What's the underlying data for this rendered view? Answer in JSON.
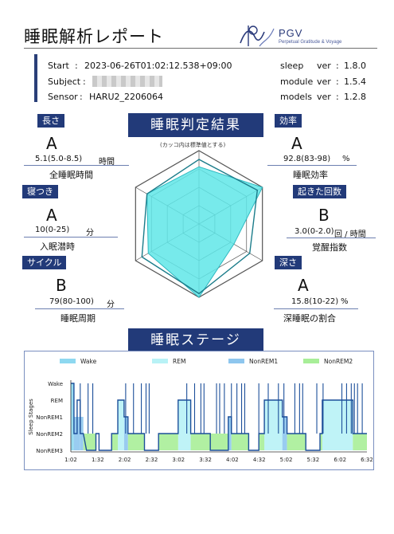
{
  "report": {
    "title": "睡眠解析レポート",
    "logo_text": "PGV",
    "logo_sub": "Perpetual Gratitude & Voyage"
  },
  "meta": {
    "start_label": "Start",
    "start_value": "2023-06-26T01:02:12.538+09:00",
    "subject_label": "Subject",
    "subject_value": "",
    "sensor_label": "Sensor",
    "sensor_value": "HARU2_2206064",
    "sleep_ver_label": "sleep",
    "sleep_ver_key": "ver",
    "sleep_ver_value": "1.8.0",
    "module_ver_label": "module",
    "module_ver_key": "ver",
    "module_ver_value": "1.5.4",
    "models_ver_label": "models",
    "models_ver_key": "ver",
    "models_ver_value": "1.2.8"
  },
  "judgment": {
    "banner": "睡眠判定結果",
    "note": "(カッコ内は標準値とする)"
  },
  "metrics": {
    "length": {
      "badge": "長さ",
      "grade": "A",
      "value": "5.1(5.0-8.5)",
      "unit": "時間",
      "label": "全睡眠時間"
    },
    "onset": {
      "badge": "寝つき",
      "grade": "A",
      "value": "10(0-25)",
      "unit": "分",
      "label": "入眠潜時"
    },
    "cycle": {
      "badge": "サイクル",
      "grade": "B",
      "value": "79(80-100)",
      "unit": "分",
      "label": "睡眠周期"
    },
    "efficiency": {
      "badge": "効率",
      "grade": "A",
      "value": "92.8(83-98)",
      "unit": "%",
      "label": "睡眠効率"
    },
    "wakeups": {
      "badge": "起きた回数",
      "grade": "B",
      "value": "3.0(0-2.0)",
      "unit": "回 / 時間",
      "label": "覚醒指数"
    },
    "depth": {
      "badge": "深さ",
      "grade": "A",
      "value": "15.8(10-22)",
      "unit": "%",
      "label": "深睡眠の割合"
    }
  },
  "radar": {
    "axes": [
      "長さ",
      "効率",
      "起きた回数",
      "深さ",
      "サイクル",
      "寝つき"
    ],
    "standard": [
      0.88,
      0.92,
      0.8,
      0.95,
      0.9,
      0.82
    ],
    "subject": [
      0.78,
      1.0,
      0.55,
      1.0,
      0.8,
      0.82
    ],
    "fill_color": "#5fe6e8",
    "line_color": "#1b7c8a",
    "grid_color": "#555555"
  },
  "stages_section": {
    "banner": "睡眠ステージ"
  },
  "chart_data": {
    "type": "area",
    "title": "",
    "xlabel": "",
    "ylabel": "Sleep Stages",
    "legend_position": "top",
    "y_categories": [
      "Wake",
      "REM",
      "NonREM1",
      "NonREM2",
      "NonREM3"
    ],
    "x_ticks": [
      "1:02",
      "1:32",
      "2:02",
      "2:32",
      "3:02",
      "3:32",
      "4:02",
      "4:32",
      "5:02",
      "5:32",
      "6:02",
      "6:32"
    ],
    "series": [
      {
        "name": "Wake",
        "color": "#8ed8f0",
        "segments": [
          [
            0,
            4
          ]
        ]
      },
      {
        "name": "REM",
        "color": "#b8f2f6",
        "segments": [
          [
            60,
            68
          ],
          [
            137,
            153
          ],
          [
            247,
            270
          ],
          [
            321,
            360
          ]
        ]
      },
      {
        "name": "NonREM1",
        "color": "#8ec6ee",
        "segments": [
          [
            4,
            12
          ],
          [
            12,
            16
          ],
          [
            68,
            73
          ],
          [
            201,
            205
          ],
          [
            270,
            276
          ]
        ]
      },
      {
        "name": "NonREM2",
        "color": "#a8ee98",
        "segments": [
          [
            16,
            32
          ],
          [
            52,
            60
          ],
          [
            73,
            94
          ],
          [
            112,
            137
          ],
          [
            153,
            201
          ],
          [
            205,
            227
          ],
          [
            240,
            247
          ],
          [
            276,
            300
          ],
          [
            318,
            321
          ],
          [
            360,
            378
          ]
        ]
      }
    ],
    "hypnogram": [
      [
        0,
        0
      ],
      [
        4,
        0
      ],
      [
        4,
        3
      ],
      [
        8,
        3
      ],
      [
        8,
        1
      ],
      [
        12,
        1
      ],
      [
        12,
        3
      ],
      [
        16,
        3
      ],
      [
        16,
        3
      ],
      [
        20,
        4
      ],
      [
        32,
        4
      ],
      [
        32,
        3
      ],
      [
        36,
        3
      ],
      [
        36,
        4
      ],
      [
        52,
        4
      ],
      [
        52,
        3
      ],
      [
        60,
        3
      ],
      [
        60,
        1
      ],
      [
        68,
        1
      ],
      [
        68,
        2
      ],
      [
        73,
        2
      ],
      [
        73,
        3
      ],
      [
        94,
        3
      ],
      [
        94,
        4
      ],
      [
        112,
        4
      ],
      [
        112,
        3
      ],
      [
        137,
        3
      ],
      [
        137,
        1
      ],
      [
        153,
        1
      ],
      [
        153,
        3
      ],
      [
        178,
        3
      ],
      [
        178,
        4
      ],
      [
        201,
        4
      ],
      [
        201,
        2
      ],
      [
        205,
        2
      ],
      [
        205,
        3
      ],
      [
        227,
        3
      ],
      [
        227,
        4
      ],
      [
        240,
        4
      ],
      [
        240,
        3
      ],
      [
        247,
        3
      ],
      [
        247,
        1
      ],
      [
        270,
        1
      ],
      [
        270,
        2
      ],
      [
        276,
        2
      ],
      [
        276,
        3
      ],
      [
        300,
        3
      ],
      [
        300,
        4
      ],
      [
        318,
        4
      ],
      [
        318,
        3
      ],
      [
        321,
        3
      ],
      [
        321,
        1
      ],
      [
        360,
        1
      ],
      [
        360,
        3
      ],
      [
        370,
        3
      ],
      [
        370,
        3
      ],
      [
        378,
        3
      ]
    ],
    "wake_spikes": [
      12,
      22,
      28,
      70,
      80,
      90,
      96,
      100,
      148,
      158,
      166,
      170,
      186,
      190,
      196,
      205,
      212,
      218,
      222,
      240,
      252,
      265,
      272,
      286,
      292,
      296,
      314,
      322,
      346,
      352,
      358,
      362,
      366,
      372
    ],
    "x_range_min": [
      0,
      378
    ]
  }
}
